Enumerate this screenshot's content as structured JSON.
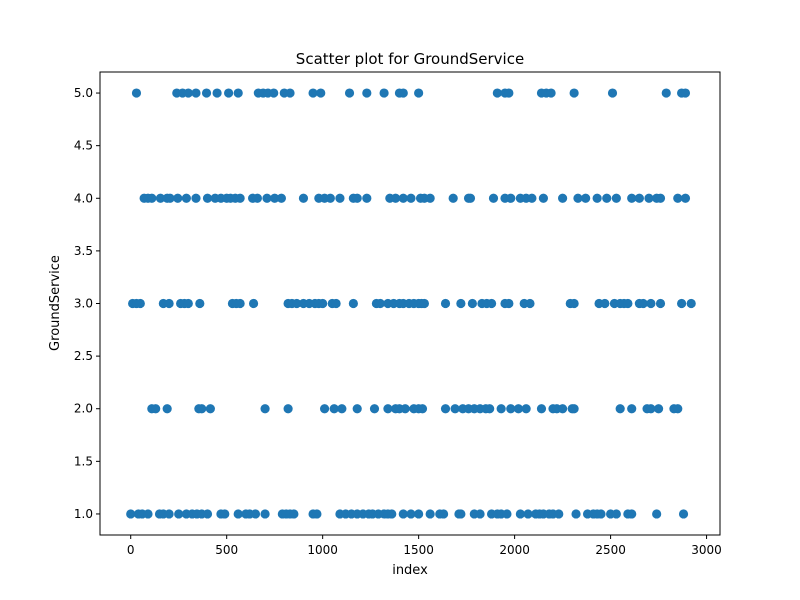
{
  "chart_data": {
    "type": "scatter",
    "title": "Scatter plot for GroundService",
    "xlabel": "index",
    "ylabel": "GroundService",
    "xlim": [
      -160,
      3070
    ],
    "ylim": [
      0.8,
      5.2
    ],
    "xticks": [
      0,
      500,
      1000,
      1500,
      2000,
      2500,
      3000
    ],
    "xtick_labels": [
      "0",
      "500",
      "1000",
      "1500",
      "2000",
      "2500",
      "3000"
    ],
    "yticks": [
      1.0,
      1.5,
      2.0,
      2.5,
      3.0,
      3.5,
      4.0,
      4.5,
      5.0
    ],
    "ytick_labels": [
      "1.0",
      "1.5",
      "2.0",
      "2.5",
      "3.0",
      "3.5",
      "4.0",
      "4.5",
      "5.0"
    ],
    "grid": false,
    "marker_color": "#1f77b4",
    "series": [
      {
        "points": [
          [
            30,
            5
          ],
          [
            240,
            5
          ],
          [
            270,
            5
          ],
          [
            300,
            5
          ],
          [
            340,
            5
          ],
          [
            395,
            5
          ],
          [
            450,
            5
          ],
          [
            510,
            5
          ],
          [
            560,
            5
          ],
          [
            665,
            5
          ],
          [
            690,
            5
          ],
          [
            715,
            5
          ],
          [
            745,
            5
          ],
          [
            800,
            5
          ],
          [
            830,
            5
          ],
          [
            950,
            5
          ],
          [
            990,
            5
          ],
          [
            1140,
            5
          ],
          [
            1230,
            5
          ],
          [
            1320,
            5
          ],
          [
            1400,
            5
          ],
          [
            1420,
            5
          ],
          [
            1500,
            5
          ],
          [
            1910,
            5
          ],
          [
            1950,
            5
          ],
          [
            1970,
            5
          ],
          [
            2140,
            5
          ],
          [
            2165,
            5
          ],
          [
            2190,
            5
          ],
          [
            2310,
            5
          ],
          [
            2510,
            5
          ],
          [
            2790,
            5
          ],
          [
            2870,
            5
          ],
          [
            2890,
            5
          ],
          [
            70,
            4
          ],
          [
            90,
            4
          ],
          [
            110,
            4
          ],
          [
            155,
            4
          ],
          [
            190,
            4
          ],
          [
            205,
            4
          ],
          [
            245,
            4
          ],
          [
            290,
            4
          ],
          [
            340,
            4
          ],
          [
            400,
            4
          ],
          [
            440,
            4
          ],
          [
            470,
            4
          ],
          [
            500,
            4
          ],
          [
            520,
            4
          ],
          [
            545,
            4
          ],
          [
            570,
            4
          ],
          [
            635,
            4
          ],
          [
            660,
            4
          ],
          [
            710,
            4
          ],
          [
            750,
            4
          ],
          [
            785,
            4
          ],
          [
            900,
            4
          ],
          [
            980,
            4
          ],
          [
            1010,
            4
          ],
          [
            1040,
            4
          ],
          [
            1090,
            4
          ],
          [
            1160,
            4
          ],
          [
            1180,
            4
          ],
          [
            1230,
            4
          ],
          [
            1350,
            4
          ],
          [
            1380,
            4
          ],
          [
            1420,
            4
          ],
          [
            1460,
            4
          ],
          [
            1510,
            4
          ],
          [
            1530,
            4
          ],
          [
            1560,
            4
          ],
          [
            1680,
            4
          ],
          [
            1760,
            4
          ],
          [
            1770,
            4
          ],
          [
            1890,
            4
          ],
          [
            1950,
            4
          ],
          [
            1980,
            4
          ],
          [
            2030,
            4
          ],
          [
            2060,
            4
          ],
          [
            2090,
            4
          ],
          [
            2150,
            4
          ],
          [
            2250,
            4
          ],
          [
            2330,
            4
          ],
          [
            2370,
            4
          ],
          [
            2430,
            4
          ],
          [
            2480,
            4
          ],
          [
            2530,
            4
          ],
          [
            2610,
            4
          ],
          [
            2650,
            4
          ],
          [
            2700,
            4
          ],
          [
            2740,
            4
          ],
          [
            2760,
            4
          ],
          [
            2850,
            4
          ],
          [
            2890,
            4
          ],
          [
            10,
            3
          ],
          [
            30,
            3
          ],
          [
            50,
            3
          ],
          [
            170,
            3
          ],
          [
            200,
            3
          ],
          [
            260,
            3
          ],
          [
            280,
            3
          ],
          [
            300,
            3
          ],
          [
            360,
            3
          ],
          [
            530,
            3
          ],
          [
            550,
            3
          ],
          [
            570,
            3
          ],
          [
            640,
            3
          ],
          [
            820,
            3
          ],
          [
            840,
            3
          ],
          [
            865,
            3
          ],
          [
            900,
            3
          ],
          [
            930,
            3
          ],
          [
            960,
            3
          ],
          [
            980,
            3
          ],
          [
            1000,
            3
          ],
          [
            1050,
            3
          ],
          [
            1070,
            3
          ],
          [
            1160,
            3
          ],
          [
            1280,
            3
          ],
          [
            1300,
            3
          ],
          [
            1340,
            3
          ],
          [
            1370,
            3
          ],
          [
            1400,
            3
          ],
          [
            1420,
            3
          ],
          [
            1450,
            3
          ],
          [
            1475,
            3
          ],
          [
            1500,
            3
          ],
          [
            1515,
            3
          ],
          [
            1530,
            3
          ],
          [
            1640,
            3
          ],
          [
            1720,
            3
          ],
          [
            1780,
            3
          ],
          [
            1830,
            3
          ],
          [
            1855,
            3
          ],
          [
            1880,
            3
          ],
          [
            1950,
            3
          ],
          [
            1970,
            3
          ],
          [
            2050,
            3
          ],
          [
            2080,
            3
          ],
          [
            2290,
            3
          ],
          [
            2310,
            3
          ],
          [
            2440,
            3
          ],
          [
            2470,
            3
          ],
          [
            2520,
            3
          ],
          [
            2550,
            3
          ],
          [
            2570,
            3
          ],
          [
            2590,
            3
          ],
          [
            2650,
            3
          ],
          [
            2670,
            3
          ],
          [
            2710,
            3
          ],
          [
            2760,
            3
          ],
          [
            2870,
            3
          ],
          [
            2920,
            3
          ],
          [
            110,
            2
          ],
          [
            130,
            2
          ],
          [
            190,
            2
          ],
          [
            355,
            2
          ],
          [
            370,
            2
          ],
          [
            415,
            2
          ],
          [
            700,
            2
          ],
          [
            820,
            2
          ],
          [
            1010,
            2
          ],
          [
            1060,
            2
          ],
          [
            1100,
            2
          ],
          [
            1180,
            2
          ],
          [
            1270,
            2
          ],
          [
            1340,
            2
          ],
          [
            1380,
            2
          ],
          [
            1400,
            2
          ],
          [
            1430,
            2
          ],
          [
            1475,
            2
          ],
          [
            1500,
            2
          ],
          [
            1520,
            2
          ],
          [
            1640,
            2
          ],
          [
            1690,
            2
          ],
          [
            1730,
            2
          ],
          [
            1760,
            2
          ],
          [
            1790,
            2
          ],
          [
            1820,
            2
          ],
          [
            1850,
            2
          ],
          [
            1870,
            2
          ],
          [
            1930,
            2
          ],
          [
            1980,
            2
          ],
          [
            2020,
            2
          ],
          [
            2060,
            2
          ],
          [
            2140,
            2
          ],
          [
            2200,
            2
          ],
          [
            2220,
            2
          ],
          [
            2250,
            2
          ],
          [
            2300,
            2
          ],
          [
            2310,
            2
          ],
          [
            2550,
            2
          ],
          [
            2610,
            2
          ],
          [
            2690,
            2
          ],
          [
            2710,
            2
          ],
          [
            2750,
            2
          ],
          [
            2830,
            2
          ],
          [
            2850,
            2
          ],
          [
            0,
            1
          ],
          [
            40,
            1
          ],
          [
            60,
            1
          ],
          [
            90,
            1
          ],
          [
            150,
            1
          ],
          [
            170,
            1
          ],
          [
            200,
            1
          ],
          [
            250,
            1
          ],
          [
            290,
            1
          ],
          [
            320,
            1
          ],
          [
            345,
            1
          ],
          [
            370,
            1
          ],
          [
            400,
            1
          ],
          [
            470,
            1
          ],
          [
            490,
            1
          ],
          [
            560,
            1
          ],
          [
            600,
            1
          ],
          [
            620,
            1
          ],
          [
            650,
            1
          ],
          [
            700,
            1
          ],
          [
            790,
            1
          ],
          [
            810,
            1
          ],
          [
            830,
            1
          ],
          [
            850,
            1
          ],
          [
            950,
            1
          ],
          [
            970,
            1
          ],
          [
            1090,
            1
          ],
          [
            1120,
            1
          ],
          [
            1150,
            1
          ],
          [
            1180,
            1
          ],
          [
            1210,
            1
          ],
          [
            1240,
            1
          ],
          [
            1260,
            1
          ],
          [
            1290,
            1
          ],
          [
            1320,
            1
          ],
          [
            1340,
            1
          ],
          [
            1360,
            1
          ],
          [
            1420,
            1
          ],
          [
            1460,
            1
          ],
          [
            1500,
            1
          ],
          [
            1560,
            1
          ],
          [
            1610,
            1
          ],
          [
            1630,
            1
          ],
          [
            1710,
            1
          ],
          [
            1720,
            1
          ],
          [
            1790,
            1
          ],
          [
            1820,
            1
          ],
          [
            1880,
            1
          ],
          [
            1910,
            1
          ],
          [
            1930,
            1
          ],
          [
            1960,
            1
          ],
          [
            2030,
            1
          ],
          [
            2070,
            1
          ],
          [
            2110,
            1
          ],
          [
            2130,
            1
          ],
          [
            2150,
            1
          ],
          [
            2180,
            1
          ],
          [
            2200,
            1
          ],
          [
            2230,
            1
          ],
          [
            2320,
            1
          ],
          [
            2380,
            1
          ],
          [
            2410,
            1
          ],
          [
            2430,
            1
          ],
          [
            2450,
            1
          ],
          [
            2500,
            1
          ],
          [
            2530,
            1
          ],
          [
            2590,
            1
          ],
          [
            2610,
            1
          ],
          [
            2740,
            1
          ],
          [
            2880,
            1
          ]
        ]
      }
    ]
  }
}
